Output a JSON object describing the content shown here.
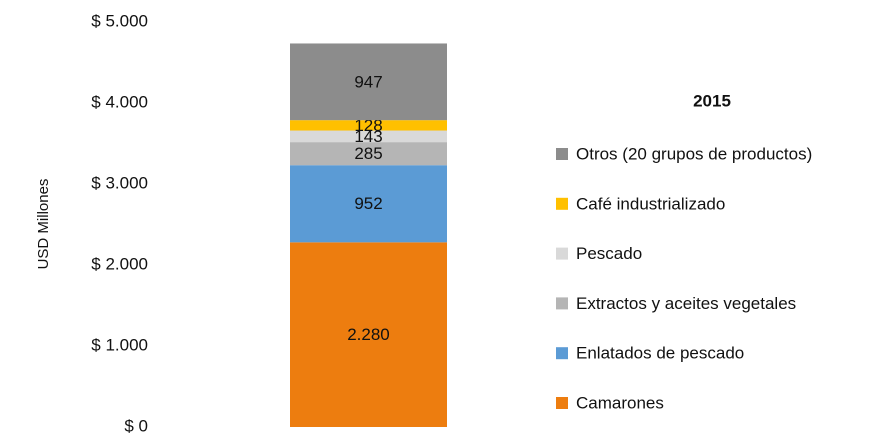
{
  "chart_data": {
    "type": "stacked_bar",
    "y_label": "USD Millones",
    "legend_title": "2015",
    "legend_position": "right",
    "categories": [
      null
    ],
    "series": [
      {
        "name": "Camarones",
        "color": "#ed7d0f",
        "values": [
          2280
        ],
        "value_labels": [
          "2.280"
        ]
      },
      {
        "name": "Enlatados de pescado",
        "color": "#5b9bd5",
        "values": [
          952
        ]
      },
      {
        "name": "Extractos y aceites vegetales",
        "color": "#b5b5b5",
        "values": [
          285
        ]
      },
      {
        "name": "Pescado",
        "color": "#d9d9d9",
        "values": [
          143
        ]
      },
      {
        "name": "Café industrializado",
        "color": "#ffc000",
        "values": [
          128
        ]
      },
      {
        "name": "Otros (20 grupos de productos)",
        "color": "#8c8c8c",
        "values": [
          947
        ]
      }
    ],
    "ylim": [
      0,
      5000
    ],
    "yticks": [
      {
        "value": 0,
        "label": "$ 0"
      },
      {
        "value": 1000,
        "label": "$ 1.000"
      },
      {
        "value": 2000,
        "label": "$ 2.000"
      },
      {
        "value": 3000,
        "label": "$ 3.000"
      },
      {
        "value": 4000,
        "label": "$ 4.000"
      },
      {
        "value": 5000,
        "label": "$ 5.000"
      }
    ],
    "grid": false
  }
}
